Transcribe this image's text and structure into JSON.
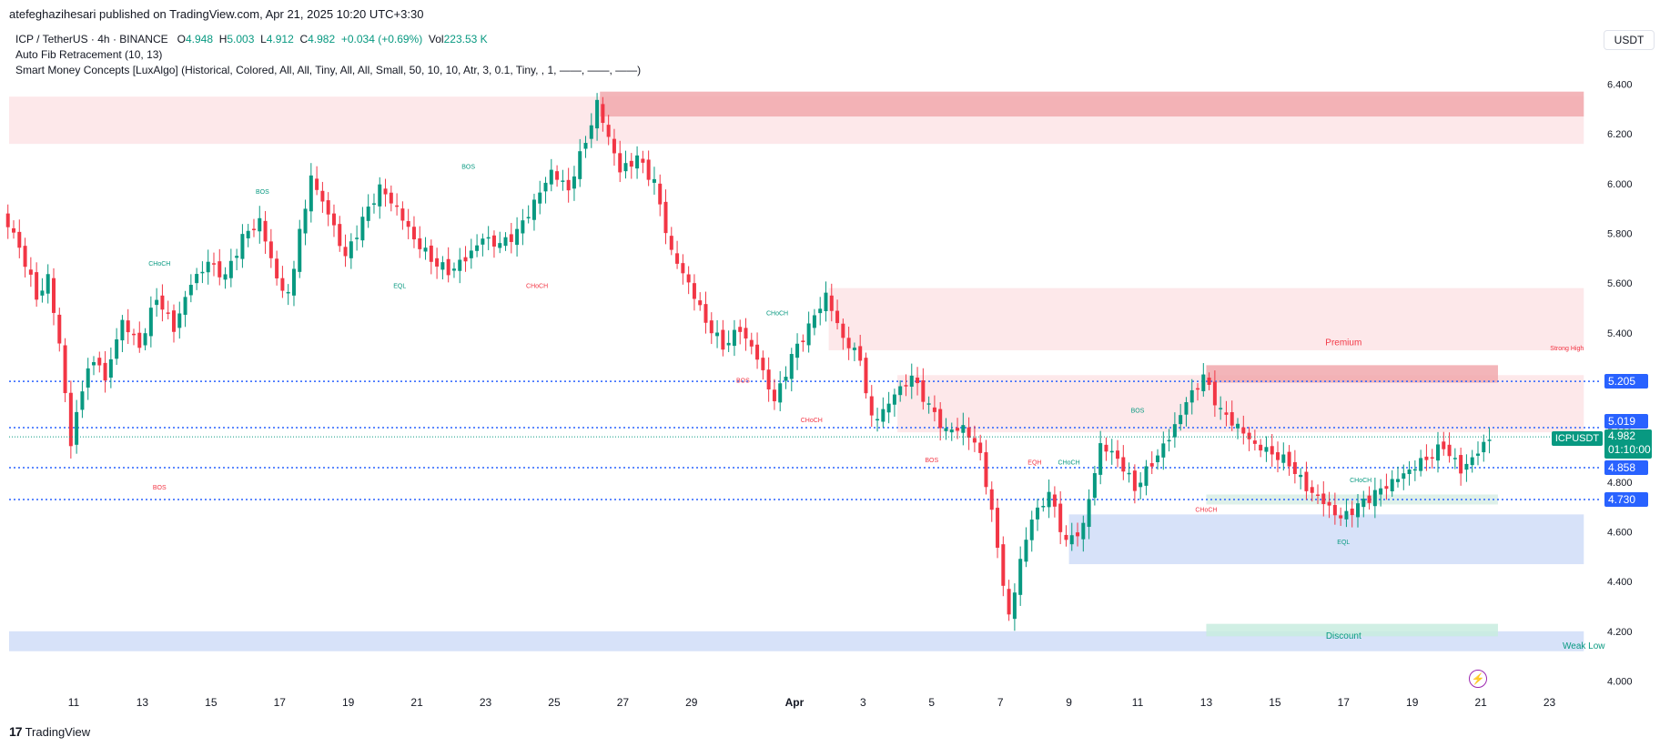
{
  "header": {
    "published_line": "atefeghazihesari published on TradingView.com, Apr 21, 2025 10:20 UTC+3:30",
    "symbol_line": "ICP / TetherUS · 4h · BINANCE",
    "ohlc": {
      "o_label": "O",
      "o": "4.948",
      "h_label": "H",
      "h": "5.003",
      "l_label": "L",
      "l": "4.912",
      "c_label": "C",
      "c": "4.982",
      "change": "+0.034 (+0.69%)",
      "vol_label": "Vol",
      "vol": "223.53 K"
    },
    "indicators": [
      "Auto Fib Retracement (10, 13)",
      "Smart Money Concepts [LuxAlgo] (Historical, Colored, All, All, Tiny, All, All, Small, 50, 10, 10, Atr, 3, 0.1, Tiny, , 1, ——, ——, ——)"
    ],
    "currency": "USDT"
  },
  "footer": {
    "brand": "TradingView"
  },
  "price_tags": {
    "p5205": "5.205",
    "p5019": "5.019",
    "p4858": "4.858",
    "p4730": "4.730",
    "last_symbol": "ICPUSDT",
    "last_price": "4.982",
    "countdown": "01:10:00"
  },
  "colors": {
    "up": "#089981",
    "down": "#f23645",
    "fib_blue": "#2962ff",
    "supply": "#f8c9cc",
    "demand": "#c3d4f7"
  },
  "chart_data": {
    "type": "candlestick",
    "symbol": "ICP / TetherUS",
    "interval": "4h",
    "ylim": [
      3.93,
      6.47
    ],
    "y_ticks": [
      "4.000",
      "4.200",
      "4.400",
      "4.600",
      "4.800",
      "5.000",
      "5.200",
      "5.400",
      "5.600",
      "5.800",
      "6.000",
      "6.200",
      "6.400"
    ],
    "x_range_days": [
      "2025-03-09",
      "2025-04-24"
    ],
    "x_ticks": [
      {
        "date": "2025-03-11",
        "label": "11"
      },
      {
        "date": "2025-03-13",
        "label": "13"
      },
      {
        "date": "2025-03-15",
        "label": "15"
      },
      {
        "date": "2025-03-17",
        "label": "17"
      },
      {
        "date": "2025-03-19",
        "label": "19"
      },
      {
        "date": "2025-03-21",
        "label": "21"
      },
      {
        "date": "2025-03-23",
        "label": "23"
      },
      {
        "date": "2025-03-25",
        "label": "25"
      },
      {
        "date": "2025-03-27",
        "label": "27"
      },
      {
        "date": "2025-03-29",
        "label": "29"
      },
      {
        "date": "2025-04-01",
        "label": "Apr"
      },
      {
        "date": "2025-04-03",
        "label": "3"
      },
      {
        "date": "2025-04-05",
        "label": "5"
      },
      {
        "date": "2025-04-07",
        "label": "7"
      },
      {
        "date": "2025-04-09",
        "label": "9"
      },
      {
        "date": "2025-04-11",
        "label": "11"
      },
      {
        "date": "2025-04-13",
        "label": "13"
      },
      {
        "date": "2025-04-15",
        "label": "15"
      },
      {
        "date": "2025-04-17",
        "label": "17"
      },
      {
        "date": "2025-04-19",
        "label": "19"
      },
      {
        "date": "2025-04-21",
        "label": "21"
      },
      {
        "date": "2025-04-23",
        "label": "23"
      }
    ],
    "close_path": [
      [
        "2025-03-09 00:00",
        5.88
      ],
      [
        "2025-03-09 12:00",
        5.75
      ],
      [
        "2025-03-10 00:00",
        5.55
      ],
      [
        "2025-03-10 08:00",
        5.62
      ],
      [
        "2025-03-10 16:00",
        5.35
      ],
      [
        "2025-03-11 00:00",
        4.95
      ],
      [
        "2025-03-11 08:00",
        5.18
      ],
      [
        "2025-03-11 16:00",
        5.3
      ],
      [
        "2025-03-12 00:00",
        5.22
      ],
      [
        "2025-03-12 12:00",
        5.45
      ],
      [
        "2025-03-13 00:00",
        5.35
      ],
      [
        "2025-03-13 12:00",
        5.55
      ],
      [
        "2025-03-14 00:00",
        5.42
      ],
      [
        "2025-03-14 12:00",
        5.6
      ],
      [
        "2025-03-15 00:00",
        5.68
      ],
      [
        "2025-03-15 12:00",
        5.62
      ],
      [
        "2025-03-16 00:00",
        5.78
      ],
      [
        "2025-03-16 12:00",
        5.85
      ],
      [
        "2025-03-17 00:00",
        5.62
      ],
      [
        "2025-03-17 08:00",
        5.55
      ],
      [
        "2025-03-17 16:00",
        5.8
      ],
      [
        "2025-03-18 00:00",
        6.02
      ],
      [
        "2025-03-18 12:00",
        5.88
      ],
      [
        "2025-03-19 00:00",
        5.7
      ],
      [
        "2025-03-19 12:00",
        5.85
      ],
      [
        "2025-03-20 00:00",
        5.98
      ],
      [
        "2025-03-20 12:00",
        5.9
      ],
      [
        "2025-03-21 00:00",
        5.78
      ],
      [
        "2025-03-21 12:00",
        5.7
      ],
      [
        "2025-03-22 00:00",
        5.65
      ],
      [
        "2025-03-22 12:00",
        5.7
      ],
      [
        "2025-03-23 00:00",
        5.78
      ],
      [
        "2025-03-23 12:00",
        5.75
      ],
      [
        "2025-03-24 00:00",
        5.8
      ],
      [
        "2025-03-24 12:00",
        5.92
      ],
      [
        "2025-03-25 00:00",
        6.05
      ],
      [
        "2025-03-25 12:00",
        5.98
      ],
      [
        "2025-03-26 00:00",
        6.18
      ],
      [
        "2025-03-26 08:00",
        6.32
      ],
      [
        "2025-03-26 16:00",
        6.18
      ],
      [
        "2025-03-27 00:00",
        6.05
      ],
      [
        "2025-03-27 12:00",
        6.1
      ],
      [
        "2025-03-28 00:00",
        6.0
      ],
      [
        "2025-03-28 12:00",
        5.72
      ],
      [
        "2025-03-29 00:00",
        5.6
      ],
      [
        "2025-03-29 12:00",
        5.45
      ],
      [
        "2025-03-30 00:00",
        5.35
      ],
      [
        "2025-03-30 12:00",
        5.42
      ],
      [
        "2025-03-31 00:00",
        5.3
      ],
      [
        "2025-03-31 12:00",
        5.12
      ],
      [
        "2025-04-01 00:00",
        5.3
      ],
      [
        "2025-04-01 12:00",
        5.42
      ],
      [
        "2025-04-02 00:00",
        5.55
      ],
      [
        "2025-04-02 12:00",
        5.38
      ],
      [
        "2025-04-03 00:00",
        5.3
      ],
      [
        "2025-04-03 08:00",
        5.05
      ],
      [
        "2025-04-03 16:00",
        5.08
      ],
      [
        "2025-04-04 00:00",
        5.15
      ],
      [
        "2025-04-04 12:00",
        5.22
      ],
      [
        "2025-04-05 00:00",
        5.1
      ],
      [
        "2025-04-05 12:00",
        5.0
      ],
      [
        "2025-04-06 00:00",
        5.02
      ],
      [
        "2025-04-06 12:00",
        4.92
      ],
      [
        "2025-04-07 00:00",
        4.55
      ],
      [
        "2025-04-07 08:00",
        4.25
      ],
      [
        "2025-04-07 16:00",
        4.48
      ],
      [
        "2025-04-08 00:00",
        4.65
      ],
      [
        "2025-04-08 12:00",
        4.75
      ],
      [
        "2025-04-09 00:00",
        4.55
      ],
      [
        "2025-04-09 12:00",
        4.62
      ],
      [
        "2025-04-10 00:00",
        4.95
      ],
      [
        "2025-04-10 12:00",
        4.9
      ],
      [
        "2025-04-11 00:00",
        4.78
      ],
      [
        "2025-04-11 12:00",
        4.88
      ],
      [
        "2025-04-12 00:00",
        4.98
      ],
      [
        "2025-04-12 12:00",
        5.12
      ],
      [
        "2025-04-13 00:00",
        5.22
      ],
      [
        "2025-04-13 12:00",
        5.08
      ],
      [
        "2025-04-14 00:00",
        5.02
      ],
      [
        "2025-04-14 12:00",
        4.95
      ],
      [
        "2025-04-15 00:00",
        4.92
      ],
      [
        "2025-04-15 12:00",
        4.88
      ],
      [
        "2025-04-16 00:00",
        4.78
      ],
      [
        "2025-04-16 12:00",
        4.72
      ],
      [
        "2025-04-17 00:00",
        4.65
      ],
      [
        "2025-04-17 12:00",
        4.7
      ],
      [
        "2025-04-18 00:00",
        4.75
      ],
      [
        "2025-04-18 12:00",
        4.8
      ],
      [
        "2025-04-19 00:00",
        4.85
      ],
      [
        "2025-04-19 12:00",
        4.9
      ],
      [
        "2025-04-20 00:00",
        4.95
      ],
      [
        "2025-04-20 12:00",
        4.85
      ],
      [
        "2025-04-21 00:00",
        4.92
      ],
      [
        "2025-04-21 08:00",
        4.98
      ]
    ],
    "supply_zones": [
      {
        "from": "2025-03-09",
        "to": "2025-04-24",
        "low": 6.16,
        "high": 6.35,
        "color": "#fde4e6"
      },
      {
        "from": "2025-03-26 08:00",
        "to": "2025-04-24",
        "low": 6.27,
        "high": 6.37,
        "color": "#f1a8ad"
      },
      {
        "from": "2025-04-02",
        "to": "2025-04-24",
        "low": 5.33,
        "high": 5.58,
        "color": "#fde4e6"
      },
      {
        "from": "2025-04-04",
        "to": "2025-04-24",
        "low": 5.0,
        "high": 5.23,
        "color": "#fde4e6"
      },
      {
        "from": "2025-04-13",
        "to": "2025-04-21 12:00",
        "low": 5.2,
        "high": 5.27,
        "color": "#f1a8ad"
      }
    ],
    "demand_zones": [
      {
        "from": "2025-03-09",
        "to": "2025-04-24",
        "low": 4.12,
        "high": 4.2,
        "color": "#d0ddf8"
      },
      {
        "from": "2025-04-09",
        "to": "2025-04-24",
        "low": 4.47,
        "high": 4.67,
        "color": "#d0ddf8"
      },
      {
        "from": "2025-04-13",
        "to": "2025-04-21 12:00",
        "low": 4.18,
        "high": 4.23,
        "color": "#c8ecdf"
      },
      {
        "from": "2025-04-13",
        "to": "2025-04-21 12:00",
        "low": 4.71,
        "high": 4.75,
        "color": "#d8ede5"
      }
    ],
    "fib_levels": [
      5.205,
      5.019,
      4.858,
      4.73
    ],
    "zone_labels": [
      {
        "text": "Premium",
        "date": "2025-04-17",
        "price": 5.35,
        "color": "#f23645"
      },
      {
        "text": "Discount",
        "date": "2025-04-17",
        "price": 4.17,
        "color": "#089981"
      },
      {
        "text": "Strong High",
        "date": "2025-04-24",
        "price": 5.33,
        "color": "#f23645"
      },
      {
        "text": "Weak Low",
        "date": "2025-04-24",
        "price": 4.13,
        "color": "#089981"
      }
    ],
    "structure_labels": [
      {
        "text": "CHoCH",
        "date": "2025-03-13 12:00",
        "price": 5.67,
        "color": "#089981"
      },
      {
        "text": "BOS",
        "date": "2025-03-16 12:00",
        "price": 5.96,
        "color": "#089981"
      },
      {
        "text": "BOS",
        "date": "2025-03-22 12:00",
        "price": 6.06,
        "color": "#089981"
      },
      {
        "text": "EQL",
        "date": "2025-03-20 12:00",
        "price": 5.58,
        "color": "#089981"
      },
      {
        "text": "CHoCH",
        "date": "2025-03-24 12:00",
        "price": 5.58,
        "color": "#f23645"
      },
      {
        "text": "BOS",
        "date": "2025-03-13 12:00",
        "price": 4.77,
        "color": "#f23645"
      },
      {
        "text": "CHoCH",
        "date": "2025-03-31 12:00",
        "price": 5.47,
        "color": "#089981"
      },
      {
        "text": "BOS",
        "date": "2025-03-30 12:00",
        "price": 5.2,
        "color": "#f23645"
      },
      {
        "text": "CHoCH",
        "date": "2025-04-01 12:00",
        "price": 5.04,
        "color": "#f23645"
      },
      {
        "text": "BOS",
        "date": "2025-04-05",
        "price": 4.88,
        "color": "#f23645"
      },
      {
        "text": "EQH",
        "date": "2025-04-08",
        "price": 4.87,
        "color": "#f23645"
      },
      {
        "text": "CHoCH",
        "date": "2025-04-09",
        "price": 4.87,
        "color": "#089981"
      },
      {
        "text": "BOS",
        "date": "2025-04-11",
        "price": 5.08,
        "color": "#089981"
      },
      {
        "text": "CHoCH",
        "date": "2025-04-13",
        "price": 4.68,
        "color": "#f23645"
      },
      {
        "text": "CHoCH",
        "date": "2025-04-17 12:00",
        "price": 4.8,
        "color": "#089981"
      },
      {
        "text": "EQL",
        "date": "2025-04-17",
        "price": 4.55,
        "color": "#089981"
      }
    ]
  }
}
